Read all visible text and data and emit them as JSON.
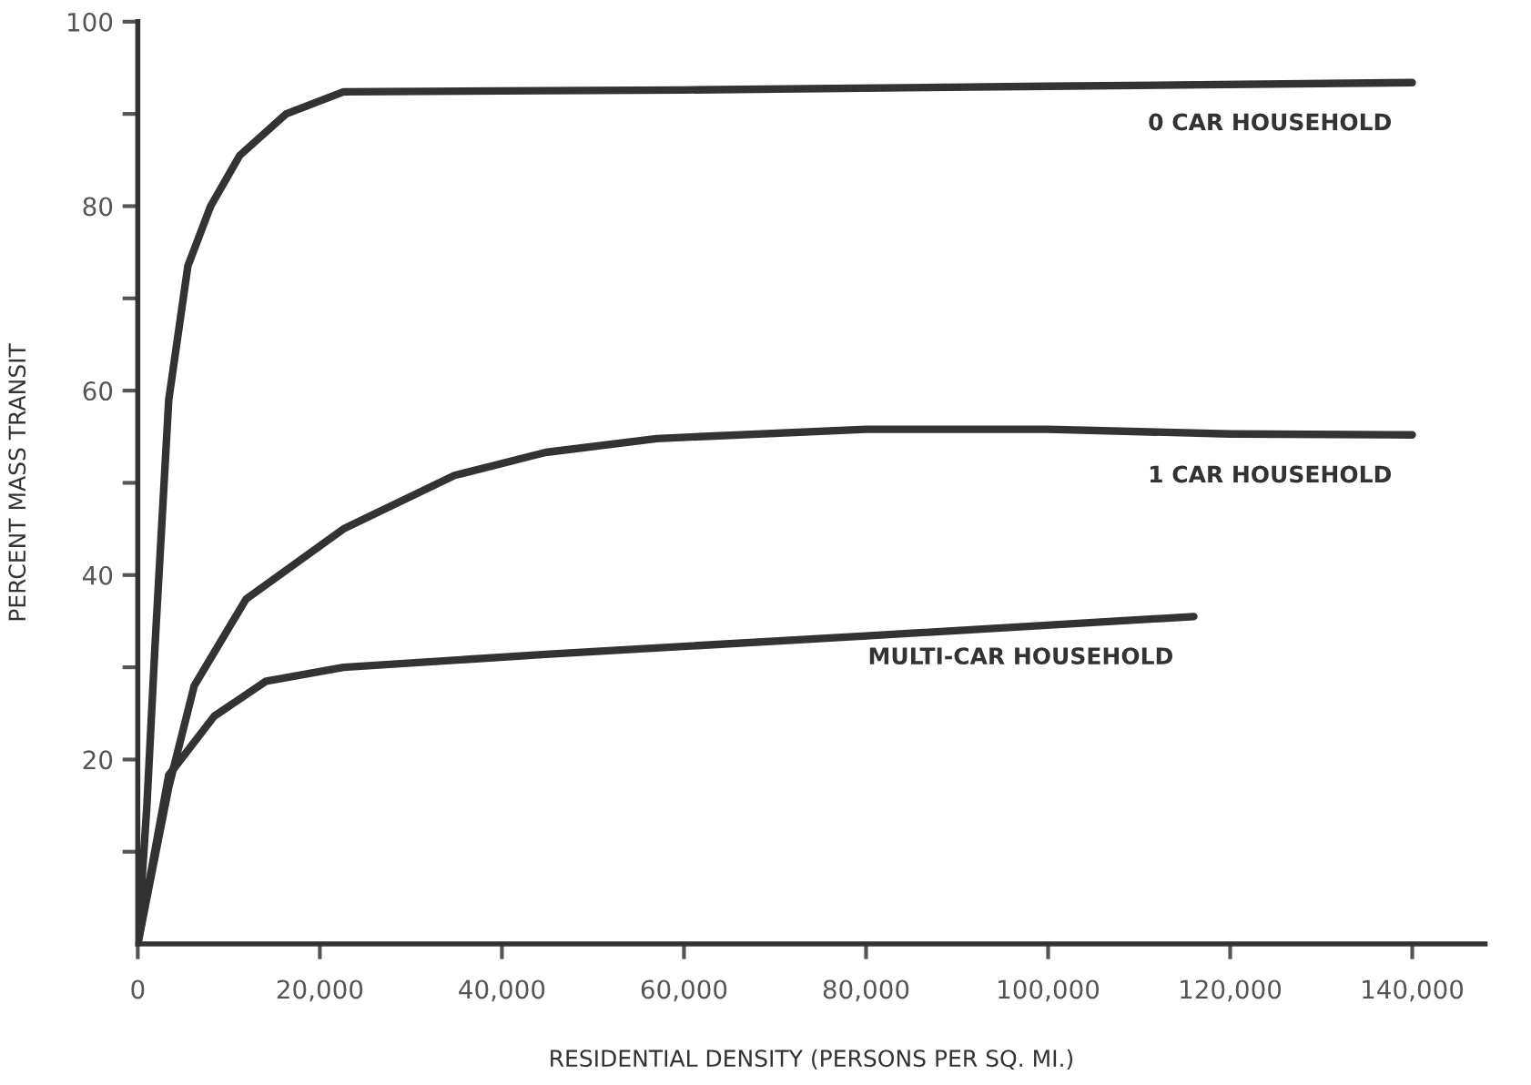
{
  "chart_data": {
    "type": "line",
    "xlabel": "RESIDENTIAL DENSITY (PERSONS PER SQ. MI.)",
    "ylabel": "PERCENT MASS TRANSIT",
    "xlim": [
      0,
      148000
    ],
    "ylim": [
      0,
      100
    ],
    "xticks": [
      0,
      {
        "value": 20000,
        "label": "20,000"
      },
      {
        "value": 40000,
        "label": "40,000"
      },
      {
        "value": 60000,
        "label": "60,000"
      },
      {
        "value": 80000,
        "label": "80,000"
      },
      {
        "value": 100000,
        "label": "100,000"
      },
      {
        "value": 120000,
        "label": "120,000"
      },
      {
        "value": 140000,
        "label": "140,000"
      }
    ],
    "yticks": [
      {
        "value": 10,
        "label": null
      },
      20,
      {
        "value": 30,
        "label": null
      },
      40,
      {
        "value": 50,
        "label": null
      },
      60,
      {
        "value": 70,
        "label": null
      },
      80,
      {
        "value": 90,
        "label": null
      },
      100
    ],
    "grid": false,
    "legend": false,
    "marker": "none",
    "line_style": "solid",
    "series": [
      {
        "name": "0 CAR HOUSEHOLD",
        "color": "#333333",
        "x": [
          0,
          1000,
          1900,
          3400,
          5500,
          8000,
          11200,
          16300,
          22600,
          40000,
          60000,
          100000,
          140000
        ],
        "values": [
          0,
          15,
          32.5,
          59,
          73.5,
          80,
          85.5,
          90,
          92.4,
          92.5,
          92.6,
          93,
          93.4
        ]
      },
      {
        "name": "1 CAR HOUSEHOLD",
        "color": "#333333",
        "x": [
          0,
          3400,
          6200,
          11900,
          22600,
          34800,
          44800,
          57000,
          80000,
          100000,
          120000,
          140000
        ],
        "values": [
          0,
          17,
          28,
          37.4,
          45,
          50.8,
          53.3,
          54.8,
          55.8,
          55.8,
          55.3,
          55.2
        ]
      },
      {
        "name": "MULTI-CAR HOUSEHOLD",
        "color": "#333333",
        "x": [
          0,
          3400,
          8400,
          14100,
          22600,
          44800,
          80000,
          116000
        ],
        "values": [
          0,
          18.3,
          24.7,
          28.5,
          30,
          31.4,
          33.4,
          35.5
        ]
      }
    ]
  }
}
